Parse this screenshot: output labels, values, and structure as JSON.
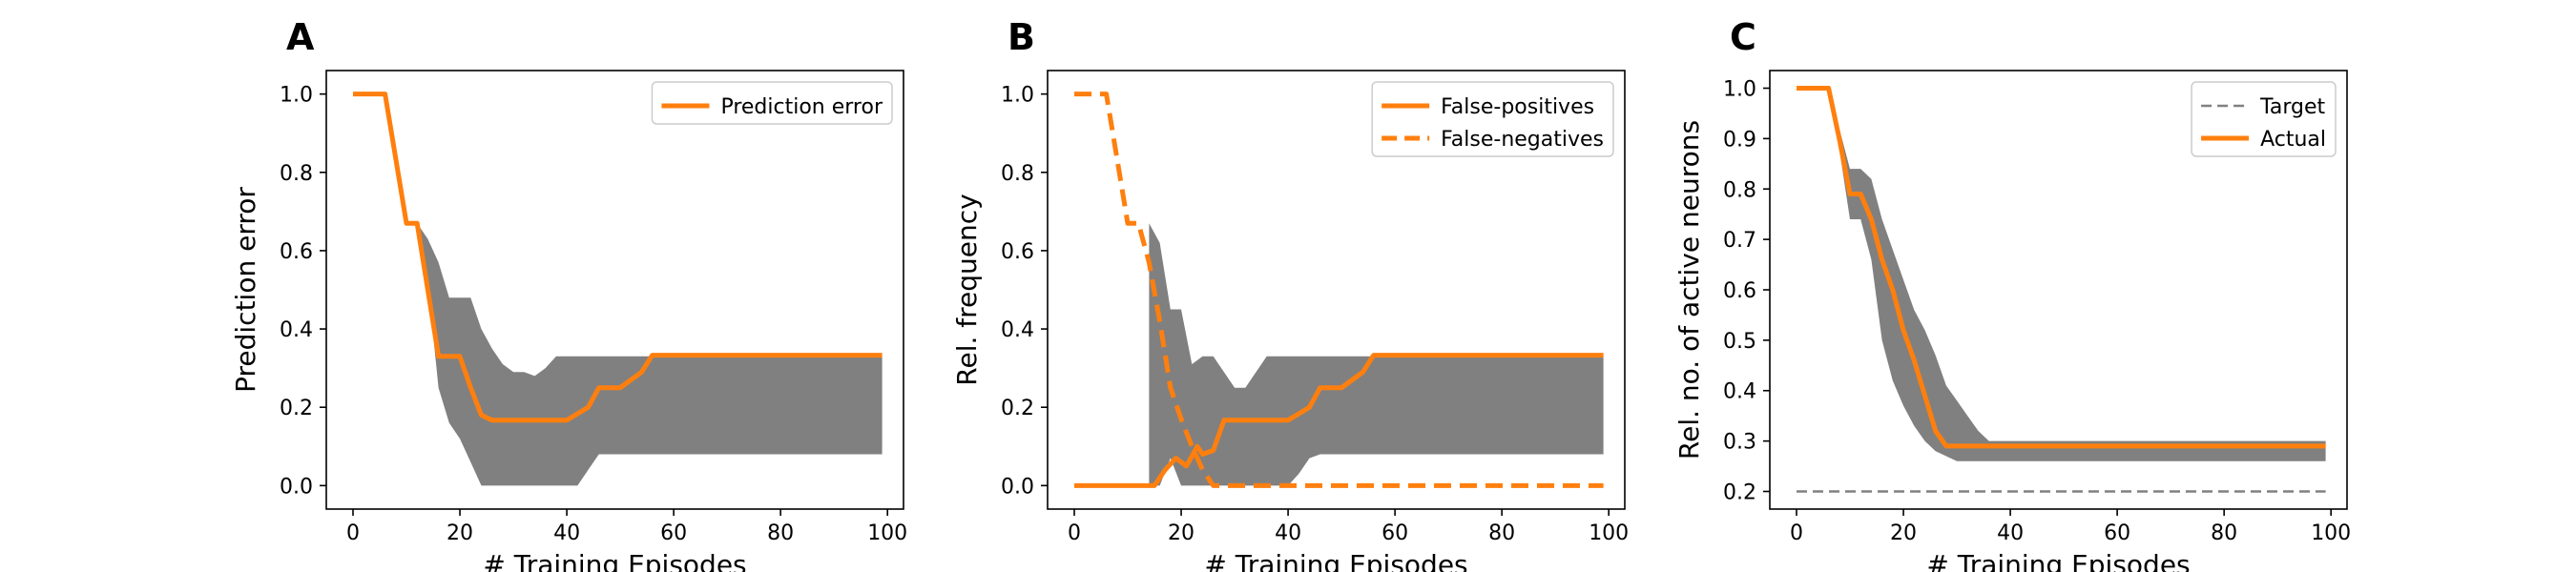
{
  "colors": {
    "orange": "#ff7f0e",
    "band": "#808080",
    "target": "#808080"
  },
  "chart_data": [
    {
      "type": "line",
      "panel_label": "A",
      "xlabel": "# Training Episodes",
      "ylabel": "Prediction error",
      "xlim": [
        -5,
        103
      ],
      "ylim": [
        -0.06,
        1.06
      ],
      "xticks": [
        0,
        20,
        40,
        60,
        80,
        100
      ],
      "yticks": [
        0.0,
        0.2,
        0.4,
        0.6,
        0.8,
        1.0
      ],
      "ytick_labels": [
        "0.0",
        "0.2",
        "0.4",
        "0.6",
        "0.8",
        "1.0"
      ],
      "legend_position": "upper right",
      "band": {
        "x": [
          12,
          14,
          16,
          18,
          20,
          22,
          24,
          26,
          28,
          30,
          32,
          34,
          36,
          38,
          40,
          42,
          44,
          46,
          50,
          60,
          80,
          99
        ],
        "upper": [
          0.67,
          0.63,
          0.57,
          0.48,
          0.48,
          0.48,
          0.4,
          0.35,
          0.31,
          0.29,
          0.29,
          0.28,
          0.3,
          0.33,
          0.33,
          0.33,
          0.33,
          0.33,
          0.33,
          0.33,
          0.33,
          0.33
        ],
        "lower": [
          0.67,
          0.52,
          0.25,
          0.16,
          0.12,
          0.06,
          0.0,
          0.0,
          0.0,
          0.0,
          0.0,
          0.0,
          0.0,
          0.0,
          0.0,
          0.0,
          0.04,
          0.08,
          0.08,
          0.08,
          0.08,
          0.08
        ]
      },
      "series": [
        {
          "name": "Prediction error",
          "style": "solid",
          "x": [
            0,
            6,
            10,
            12,
            16,
            20,
            22,
            24,
            26,
            30,
            40,
            44,
            46,
            50,
            54,
            56,
            70,
            99
          ],
          "y": [
            1.0,
            1.0,
            0.67,
            0.67,
            0.33,
            0.33,
            0.25,
            0.18,
            0.167,
            0.167,
            0.167,
            0.2,
            0.25,
            0.25,
            0.29,
            0.333,
            0.333,
            0.333
          ]
        }
      ]
    },
    {
      "type": "line",
      "panel_label": "B",
      "xlabel": "# Training Episodes",
      "ylabel": "Rel. frequency",
      "xlim": [
        -5,
        103
      ],
      "ylim": [
        -0.06,
        1.06
      ],
      "xticks": [
        0,
        20,
        40,
        60,
        80,
        100
      ],
      "yticks": [
        0.0,
        0.2,
        0.4,
        0.6,
        0.8,
        1.0
      ],
      "ytick_labels": [
        "0.0",
        "0.2",
        "0.4",
        "0.6",
        "0.8",
        "1.0"
      ],
      "legend_position": "upper right",
      "band": {
        "x": [
          14,
          16,
          18,
          20,
          22,
          24,
          26,
          28,
          30,
          32,
          34,
          36,
          38,
          40,
          42,
          44,
          46,
          50,
          60,
          80,
          99
        ],
        "upper": [
          0.67,
          0.62,
          0.45,
          0.45,
          0.31,
          0.33,
          0.33,
          0.29,
          0.25,
          0.25,
          0.29,
          0.33,
          0.33,
          0.33,
          0.33,
          0.33,
          0.33,
          0.33,
          0.33,
          0.33,
          0.33
        ],
        "lower": [
          0.0,
          0.0,
          0.07,
          0.0,
          0.0,
          0.0,
          0.0,
          0.0,
          0.0,
          0.0,
          0.0,
          0.0,
          0.0,
          0.0,
          0.03,
          0.07,
          0.08,
          0.08,
          0.08,
          0.08,
          0.08
        ]
      },
      "series": [
        {
          "name": "False-positives",
          "style": "solid",
          "x": [
            0,
            15,
            17,
            19,
            21,
            23,
            24,
            26,
            28,
            30,
            40,
            44,
            46,
            50,
            54,
            56,
            70,
            99
          ],
          "y": [
            0.0,
            0.0,
            0.04,
            0.07,
            0.05,
            0.1,
            0.08,
            0.09,
            0.167,
            0.167,
            0.167,
            0.2,
            0.25,
            0.25,
            0.29,
            0.333,
            0.333,
            0.333
          ]
        },
        {
          "name": "False-negatives",
          "style": "dashed",
          "x": [
            0,
            6,
            10,
            12,
            14,
            16,
            18,
            20,
            22,
            24,
            26,
            30,
            60,
            99
          ],
          "y": [
            1.0,
            1.0,
            0.67,
            0.67,
            0.57,
            0.42,
            0.25,
            0.17,
            0.1,
            0.04,
            0.0,
            0.0,
            0.0,
            0.0
          ]
        }
      ]
    },
    {
      "type": "line",
      "panel_label": "C",
      "xlabel": "# Training Episodes",
      "ylabel": "Rel. no. of active neurons",
      "xlim": [
        -5,
        103
      ],
      "ylim": [
        0.165,
        1.035
      ],
      "xticks": [
        0,
        20,
        40,
        60,
        80,
        100
      ],
      "yticks": [
        0.2,
        0.3,
        0.4,
        0.5,
        0.6,
        0.7,
        0.8,
        0.9,
        1.0
      ],
      "ytick_labels": [
        "0.2",
        "0.3",
        "0.4",
        "0.5",
        "0.6",
        "0.7",
        "0.8",
        "0.9",
        "1.0"
      ],
      "legend_position": "upper right",
      "band": {
        "x": [
          6,
          8,
          10,
          12,
          14,
          16,
          18,
          20,
          22,
          24,
          26,
          28,
          30,
          32,
          34,
          36,
          40,
          60,
          99
        ],
        "upper": [
          1.0,
          0.92,
          0.84,
          0.84,
          0.82,
          0.74,
          0.68,
          0.62,
          0.56,
          0.52,
          0.47,
          0.41,
          0.38,
          0.35,
          0.32,
          0.3,
          0.3,
          0.3,
          0.3
        ],
        "lower": [
          1.0,
          0.88,
          0.74,
          0.74,
          0.66,
          0.5,
          0.42,
          0.37,
          0.33,
          0.3,
          0.28,
          0.27,
          0.26,
          0.26,
          0.26,
          0.26,
          0.26,
          0.26,
          0.26
        ]
      },
      "series": [
        {
          "name": "Target",
          "style": "dashed-thin",
          "x": [
            0,
            99
          ],
          "y": [
            0.2,
            0.2
          ]
        },
        {
          "name": "Actual",
          "style": "solid",
          "x": [
            0,
            6,
            8,
            10,
            12,
            14,
            16,
            18,
            20,
            22,
            24,
            26,
            28,
            30,
            40,
            60,
            99
          ],
          "y": [
            1.0,
            1.0,
            0.9,
            0.79,
            0.79,
            0.74,
            0.66,
            0.6,
            0.52,
            0.46,
            0.39,
            0.32,
            0.29,
            0.29,
            0.29,
            0.29,
            0.29
          ]
        }
      ]
    }
  ]
}
